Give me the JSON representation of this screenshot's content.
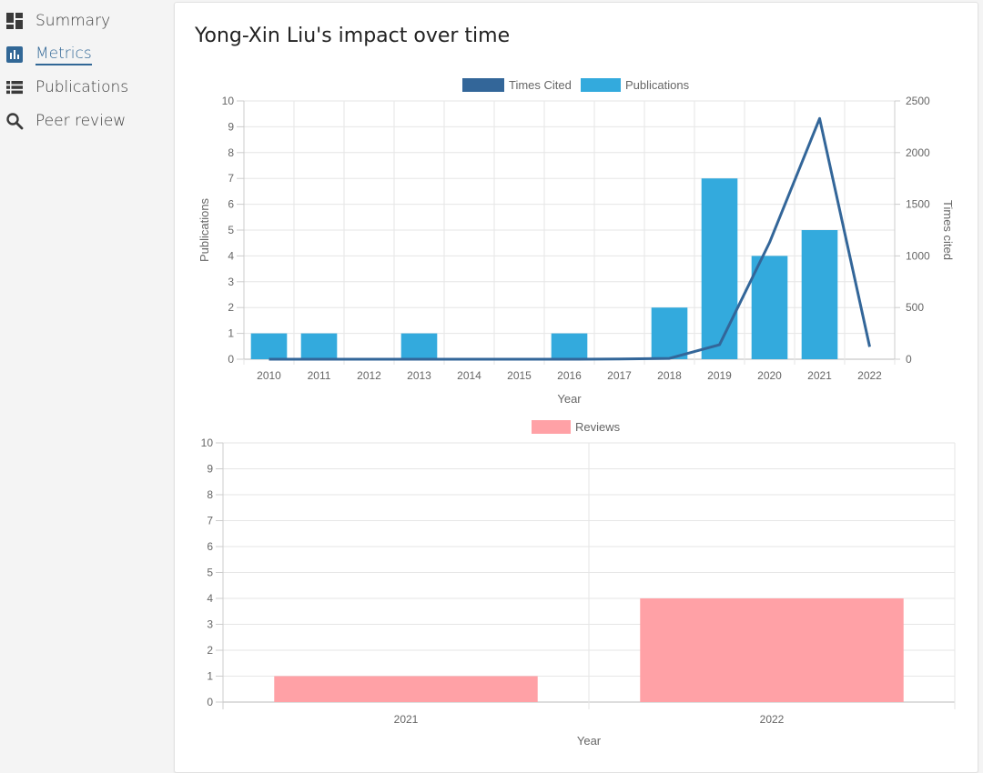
{
  "sidebar": {
    "items": [
      {
        "label": "Summary",
        "icon": "dashboard-icon"
      },
      {
        "label": "Metrics",
        "icon": "bar-chart-icon",
        "active": true
      },
      {
        "label": "Publications",
        "icon": "list-icon"
      },
      {
        "label": "Peer review",
        "icon": "search-icon"
      }
    ]
  },
  "main": {
    "title": "Yong-Xin Liu's impact over time"
  },
  "colors": {
    "times_cited": "#336699",
    "publications": "#33aadd",
    "reviews": "#ffa1a6",
    "accent": "#316796"
  },
  "chart_data": [
    {
      "type": "bar",
      "categories": [
        "2010",
        "2011",
        "2012",
        "2013",
        "2014",
        "2015",
        "2016",
        "2017",
        "2018",
        "2019",
        "2020",
        "2021",
        "2022"
      ],
      "series": [
        {
          "name": "Times Cited",
          "type": "line",
          "axis": "right",
          "values": [
            0,
            0,
            0,
            0,
            0,
            0,
            0,
            2,
            8,
            140,
            1130,
            2330,
            120
          ]
        },
        {
          "name": "Publications",
          "type": "bar",
          "axis": "left",
          "values": [
            1,
            1,
            0,
            1,
            0,
            0,
            1,
            0,
            2,
            7,
            4,
            5,
            0
          ]
        }
      ],
      "xlabel": "Year",
      "ylabel": "Publications",
      "y2label": "Times cited",
      "ylim": [
        0,
        10
      ],
      "y2lim": [
        0,
        2500
      ],
      "yticks": [
        "0",
        "1",
        "2",
        "3",
        "4",
        "5",
        "6",
        "7",
        "8",
        "9",
        "10"
      ],
      "y2ticks": [
        "0",
        "500",
        "1000",
        "1500",
        "2000",
        "2500"
      ],
      "grid": true,
      "legend": "top-center"
    },
    {
      "type": "bar",
      "categories": [
        "2021",
        "2022"
      ],
      "series": [
        {
          "name": "Reviews",
          "values": [
            1,
            4
          ]
        }
      ],
      "xlabel": "Year",
      "ylabel": "",
      "ylim": [
        0,
        10
      ],
      "yticks": [
        "0",
        "1",
        "2",
        "3",
        "4",
        "5",
        "6",
        "7",
        "8",
        "9",
        "10"
      ],
      "grid": true,
      "legend": "top-center"
    }
  ]
}
